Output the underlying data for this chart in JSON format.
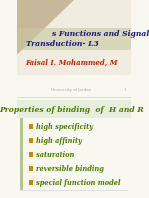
{
  "title_line1": "s Functions and Signal",
  "title_line2": "Transduction- L3",
  "author": "Faisal I. Mohammed, M",
  "watermark": "University of Jordan",
  "slide_number": "1",
  "section_title": "Properties of binding  of  H and R",
  "bullet_points": [
    "high specificity",
    "high affinity",
    "saturation",
    "reversible binding",
    "special function model"
  ],
  "bg_color": "#f0ede0",
  "triangle_color": "#c8b89a",
  "title_bar_color": "#c8c8a0",
  "title_text_color": "#1a1a7a",
  "author_color": "#cc2200",
  "section_title_color": "#4a7a00",
  "bullet_color": "#4a7a00",
  "bullet_marker_color": "#cc8800",
  "watermark_color": "#aaaaaa",
  "left_bar_color": "#b0c890",
  "main_bg": "#f8f8f0",
  "title_bg": "#dcdcc8"
}
